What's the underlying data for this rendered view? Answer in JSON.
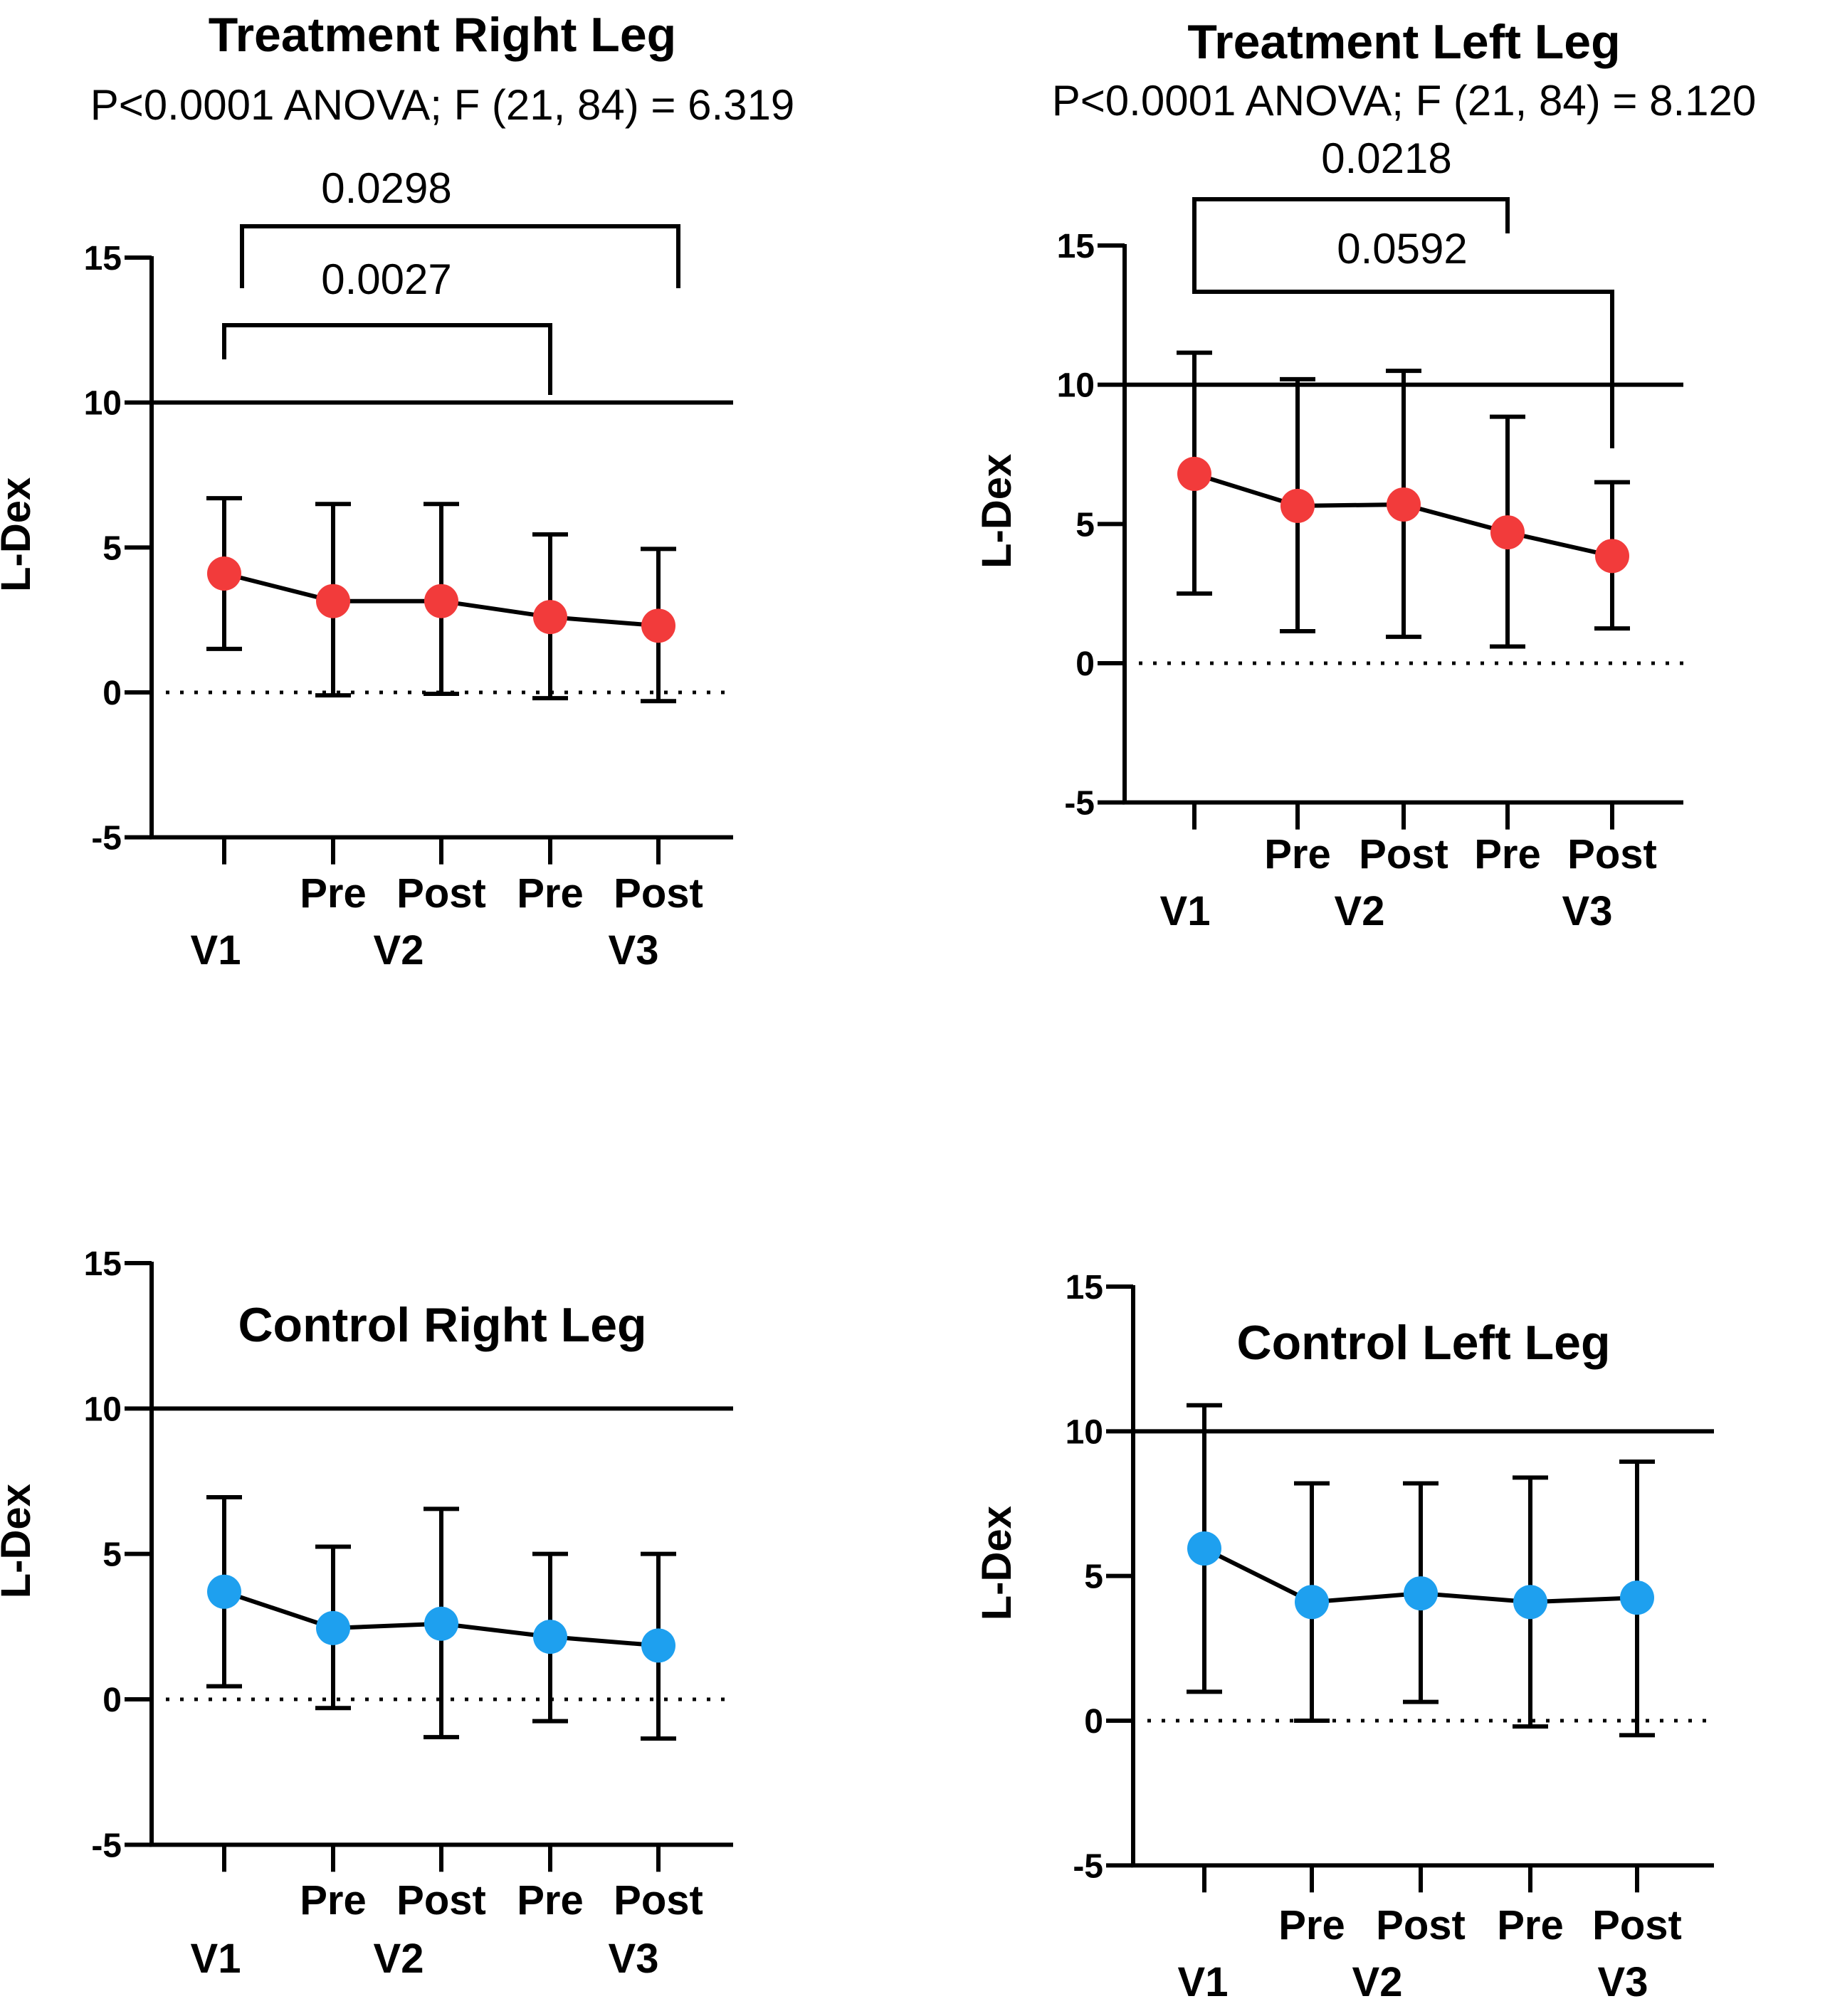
{
  "chart_data": [
    {
      "type": "line",
      "title": "Treatment Right Leg",
      "subtitle": "P<0.0001 ANOVA; F (21, 84) = 6.319",
      "ylabel": "L-Dex",
      "xlabel": "",
      "ylim": [
        -5,
        15
      ],
      "yticks": [
        "15",
        "10",
        "5",
        "0",
        "-5"
      ],
      "categories": [
        "V1",
        "V2 Pre",
        "V2 Post",
        "V3 Pre",
        "V3 Post"
      ],
      "x_tick_row1": [
        "",
        "Pre",
        "Post",
        "Pre",
        "Post"
      ],
      "x_tick_row2": [
        "V1",
        "V2",
        "V3"
      ],
      "marker_color": "#f23b3b",
      "reference_line": 10,
      "zero_line": "dotted",
      "series": [
        {
          "values": [
            4.1,
            3.15,
            3.15,
            2.6,
            2.3
          ],
          "error_low": [
            1.5,
            -0.1,
            -0.05,
            -0.2,
            -0.3
          ],
          "error_high": [
            6.7,
            6.5,
            6.5,
            5.45,
            4.95
          ]
        }
      ],
      "comparisons": [
        {
          "from": "V1",
          "to": "V3 Post",
          "p": "0.0298"
        },
        {
          "from": "V1",
          "to": "V3 Pre",
          "p": "0.0027"
        }
      ]
    },
    {
      "type": "line",
      "title": "Treatment Left Leg",
      "subtitle": "P<0.0001 ANOVA; F (21, 84) = 8.120",
      "ylabel": "L-Dex",
      "xlabel": "",
      "ylim": [
        -5,
        15
      ],
      "yticks": [
        "15",
        "10",
        "5",
        "0",
        "-5"
      ],
      "categories": [
        "V1",
        "V2 Pre",
        "V2 Post",
        "V3 Pre",
        "V3 Post"
      ],
      "x_tick_row1": [
        "",
        "Pre",
        "Post",
        "Pre",
        "Post"
      ],
      "x_tick_row2": [
        "V1",
        "V2",
        "V3"
      ],
      "marker_color": "#f23b3b",
      "reference_line": 10,
      "zero_line": "dotted",
      "series": [
        {
          "values": [
            6.8,
            5.65,
            5.7,
            4.7,
            3.85
          ],
          "error_low": [
            2.5,
            1.15,
            0.95,
            0.6,
            1.25
          ],
          "error_high": [
            11.15,
            10.2,
            10.5,
            8.85,
            6.5
          ]
        }
      ],
      "comparisons": [
        {
          "from": "V1",
          "to": "V3 Pre",
          "p": "0.0218"
        },
        {
          "from": "V1",
          "to": "V3 Post",
          "p": "0.0592"
        }
      ]
    },
    {
      "type": "line",
      "title": "Control Right Leg",
      "subtitle": "",
      "ylabel": "L-Dex",
      "xlabel": "",
      "ylim": [
        -5,
        15
      ],
      "yticks": [
        "15",
        "10",
        "5",
        "0",
        "-5"
      ],
      "categories": [
        "V1",
        "V2 Pre",
        "V2 Post",
        "V3 Pre",
        "V3 Post"
      ],
      "x_tick_row1": [
        "",
        "Pre",
        "Post",
        "Pre",
        "Post"
      ],
      "x_tick_row2": [
        "V1",
        "V2",
        "V3"
      ],
      "marker_color": "#1ea0ef",
      "reference_line": 10,
      "zero_line": "dotted",
      "series": [
        {
          "values": [
            3.7,
            2.45,
            2.6,
            2.15,
            1.85
          ],
          "error_low": [
            0.45,
            -0.3,
            -1.3,
            -0.75,
            -1.35
          ],
          "error_high": [
            6.95,
            5.25,
            6.55,
            5.0,
            5.0
          ]
        }
      ],
      "comparisons": []
    },
    {
      "type": "line",
      "title": "Control Left Leg",
      "subtitle": "",
      "ylabel": "L-Dex",
      "xlabel": "",
      "ylim": [
        -5,
        15
      ],
      "yticks": [
        "15",
        "10",
        "5",
        "0",
        "-5"
      ],
      "categories": [
        "V1",
        "V2 Pre",
        "V2 Post",
        "V3 Pre",
        "V3 Post"
      ],
      "x_tick_row1": [
        "",
        "Pre",
        "Post",
        "Pre",
        "Post"
      ],
      "x_tick_row2": [
        "V1",
        "V2",
        "V3"
      ],
      "marker_color": "#1ea0ef",
      "reference_line": 10,
      "zero_line": "dotted",
      "series": [
        {
          "values": [
            5.95,
            4.1,
            4.4,
            4.1,
            4.25
          ],
          "error_low": [
            1.0,
            0.0,
            0.65,
            -0.2,
            -0.5
          ],
          "error_high": [
            10.9,
            8.2,
            8.2,
            8.4,
            8.95
          ]
        }
      ],
      "comparisons": []
    }
  ]
}
